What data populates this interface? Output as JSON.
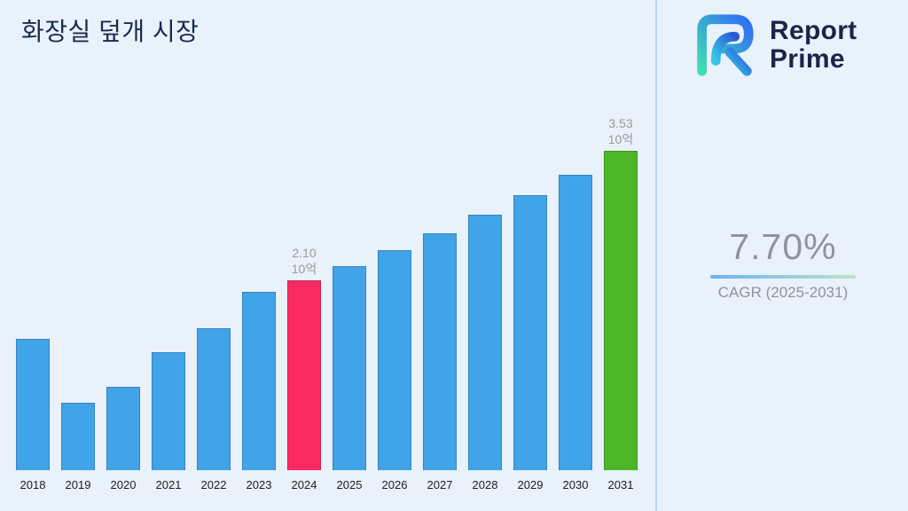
{
  "page": {
    "title": "화장실 덮개 시장",
    "background": "#e9f1fb"
  },
  "logo": {
    "line1": "Report",
    "line2": "Prime",
    "icon": "report-prime-logo-icon",
    "text_color": "#1c2448",
    "gradient": [
      "#3fe0b0",
      "#2f6df6"
    ]
  },
  "cagr": {
    "value": "7.70%",
    "label": "CAGR (2025-2031)",
    "underline_gradient": [
      "#6fb1f2",
      "#b8e6c8"
    ]
  },
  "chart_data": {
    "type": "bar",
    "title": "화장실 덮개 시장",
    "categories": [
      "2018",
      "2019",
      "2020",
      "2021",
      "2022",
      "2023",
      "2024",
      "2025",
      "2026",
      "2027",
      "2028",
      "2029",
      "2030",
      "2031"
    ],
    "values": [
      1.45,
      0.75,
      0.92,
      1.3,
      1.57,
      1.97,
      2.1,
      2.26,
      2.43,
      2.62,
      2.82,
      3.04,
      3.27,
      3.53
    ],
    "unit_label": "10억",
    "annotations": [
      {
        "year": "2024",
        "lines": [
          "2.10",
          "10억"
        ]
      },
      {
        "year": "2031",
        "lines": [
          "3.53",
          "10억"
        ]
      }
    ],
    "xlabel": "",
    "ylabel": "",
    "ylim": [
      0,
      3.9
    ],
    "grid": false,
    "legend": "none",
    "bar_colors": {
      "default": "#41a3e8",
      "2024": "#fb2a63",
      "2031": "#4db728"
    }
  }
}
